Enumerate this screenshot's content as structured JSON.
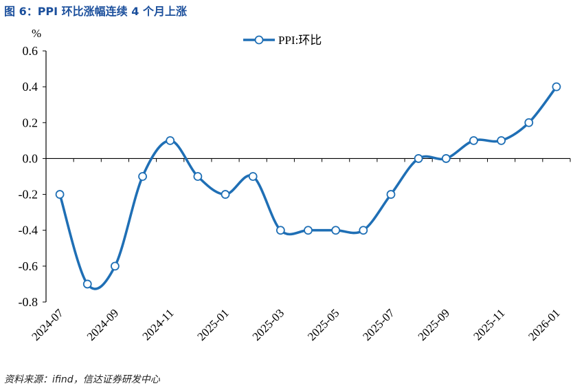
{
  "figure": {
    "title": "图 6：PPI 环比涨幅连续 4 个月上涨",
    "source": "资料来源：ifind，信达证券研发中心"
  },
  "colors": {
    "series": "#1f6fb5",
    "title": "#1b4f9c",
    "axis": "#000000"
  },
  "chart_data": {
    "type": "line",
    "unit_label": "%",
    "categories": [
      "2024-07",
      "2024-08",
      "2024-09",
      "2024-10",
      "2024-11",
      "2024-12",
      "2025-01",
      "2025-02",
      "2025-03",
      "2025-04",
      "2025-05",
      "2025-06",
      "2025-07",
      "2025-08",
      "2025-09",
      "2025-10",
      "2025-11",
      "2025-12",
      "2026-01"
    ],
    "x_tick_labels": [
      "2024-07",
      "2024-09",
      "2024-11",
      "2025-01",
      "2025-03",
      "2025-05",
      "2025-07",
      "2025-09",
      "2025-11",
      "2026-01"
    ],
    "series": [
      {
        "name": "PPI:环比",
        "values": [
          -0.2,
          -0.7,
          -0.6,
          -0.1,
          0.1,
          -0.1,
          -0.2,
          -0.1,
          -0.4,
          -0.4,
          -0.4,
          -0.4,
          -0.2,
          0.0,
          0.0,
          0.1,
          0.1,
          0.2,
          0.4
        ]
      }
    ],
    "ylim": [
      -0.8,
      0.6
    ],
    "y_ticks": [
      "-0.8",
      "-0.6",
      "-0.4",
      "-0.2",
      "0.0",
      "0.2",
      "0.4",
      "0.6"
    ],
    "smooth": true,
    "marker": "circle-open",
    "legend_position": "top-center",
    "grid": false
  }
}
